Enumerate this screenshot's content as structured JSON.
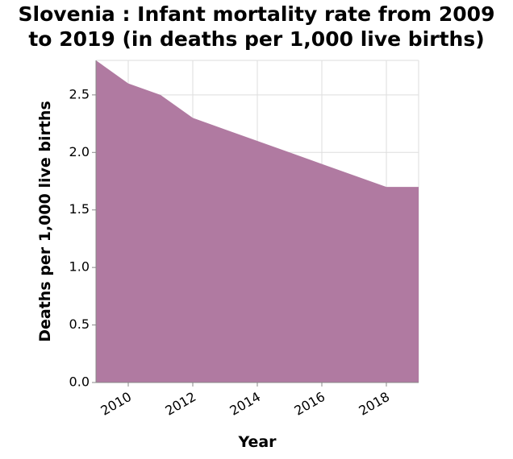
{
  "title_lines": [
    "Slovenia : Infant mortality rate from 2009",
    "to 2019 (in deaths per 1,000 live births)"
  ],
  "chart_data": {
    "type": "area",
    "title": "Slovenia : Infant mortality rate from 2009 to 2019 (in deaths per 1,000 live births)",
    "xlabel": "Year",
    "ylabel": "Deaths per 1,000 live births",
    "x": [
      2009,
      2010,
      2011,
      2012,
      2013,
      2014,
      2015,
      2016,
      2017,
      2018,
      2019
    ],
    "series": [
      {
        "values": [
          2.8,
          2.6,
          2.5,
          2.3,
          2.2,
          2.1,
          2.0,
          1.9,
          1.8,
          1.7,
          1.7
        ]
      }
    ],
    "xlim": [
      2009,
      2019
    ],
    "ylim": [
      0,
      2.8
    ],
    "x_ticks": [
      2010,
      2012,
      2014,
      2016,
      2018
    ],
    "x_tick_labels": [
      "2010",
      "2012",
      "2014",
      "2016",
      "2018"
    ],
    "y_ticks": [
      0,
      0.5,
      1,
      1.5,
      2,
      2.5
    ],
    "y_tick_labels": [
      "0.0",
      "0.5",
      "1.0",
      "1.5",
      "2.0",
      "2.5"
    ],
    "grid": true,
    "colors": {
      "area": "#b07aa1",
      "grid": "#dddddd",
      "axis": "#888888"
    }
  }
}
